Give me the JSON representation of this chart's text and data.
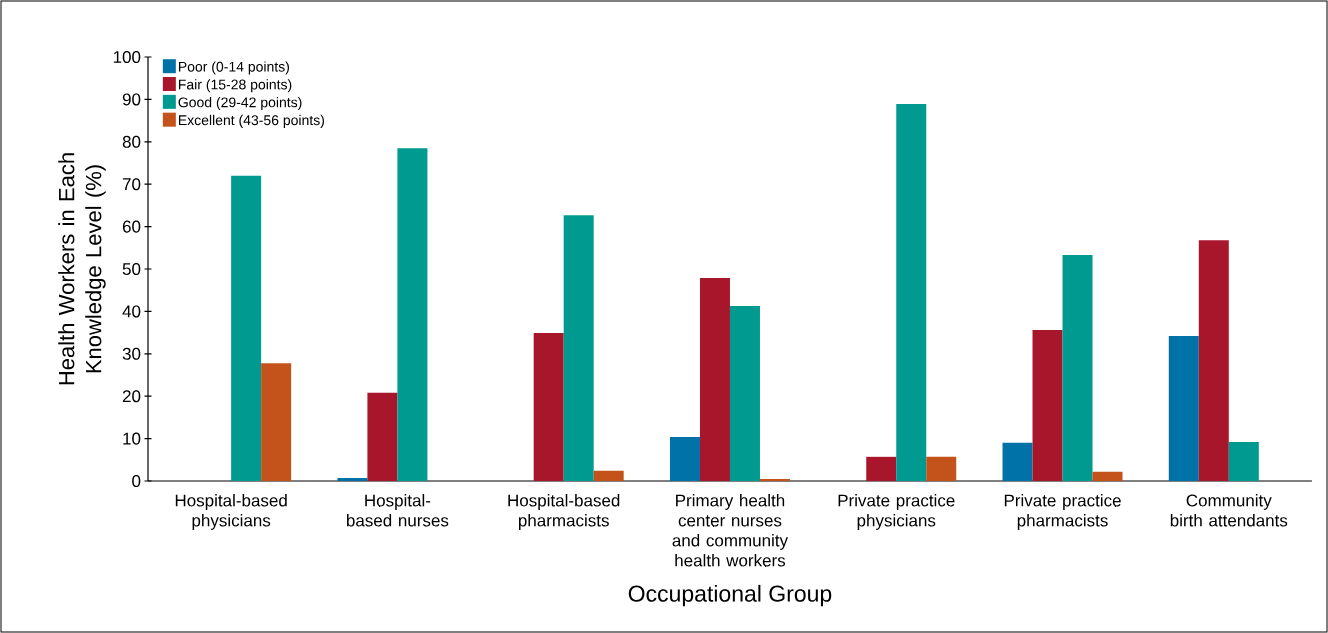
{
  "chart_data": {
    "type": "bar",
    "xlabel": "Occupational Group",
    "ylabel": "Health Workers in Each Knowledge Level (%)",
    "categories": [
      "Hospital-based physicians",
      "Hospital-based nurses",
      "Hospital-based pharmacists",
      "Primary health center nurses and community health workers",
      "Private practice physicians",
      "Private practice pharmacists",
      "Community birth attendants"
    ],
    "series": [
      {
        "name": "Poor (0-14 points)",
        "color": "#0072a8",
        "values": [
          0,
          0.7,
          0,
          10.4,
          0,
          9.0,
          34.2
        ]
      },
      {
        "name": "Fair (15-28 points)",
        "color": "#a8162c",
        "values": [
          0,
          20.8,
          34.9,
          47.9,
          5.7,
          35.6,
          56.8
        ]
      },
      {
        "name": "Good (29-42 points)",
        "color": "#009a90",
        "values": [
          72.0,
          78.5,
          62.7,
          41.3,
          88.9,
          53.3,
          9.2
        ]
      },
      {
        "name": "Excellent (43-56 points)",
        "color": "#c4531b",
        "values": [
          27.8,
          0,
          2.4,
          0.5,
          5.7,
          2.2,
          0
        ]
      }
    ],
    "ylim": [
      0,
      100
    ],
    "yticks": [
      0,
      10,
      20,
      30,
      40,
      50,
      60,
      70,
      80,
      90,
      100
    ],
    "grid": false,
    "legend": "top left"
  }
}
